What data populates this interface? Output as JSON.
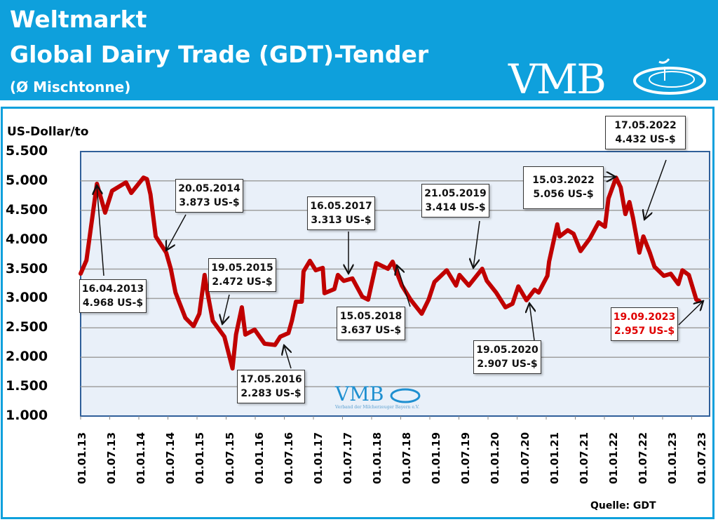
{
  "header": {
    "title_line1": "Weltmarkt",
    "title_line2": "Global Dairy Trade (GDT)-Tender",
    "subtitle": "(Ø Mischtonne)",
    "logo_text": "VMB"
  },
  "watermark": {
    "logo_text": "VMB",
    "tagline": "Verband der Milcherzeuger Bayern e.V."
  },
  "source": "Quelle: GDT",
  "colors": {
    "header": "#0ea0dc",
    "line": "#c00000",
    "plot_bg": "#e9f0f9",
    "highlight": "#e00000"
  },
  "chart_data": {
    "type": "line",
    "ylabel": "US-Dollar/to",
    "ylim": [
      1000,
      5500
    ],
    "yticks": [
      "1.000",
      "1.500",
      "2.000",
      "2.500",
      "3.000",
      "3.500",
      "4.000",
      "4.500",
      "5.000",
      "5.500"
    ],
    "xticks": [
      "01.01.13",
      "01.07.13",
      "01.01.14",
      "01.07.14",
      "01.01.15",
      "01.07.15",
      "01.01.16",
      "01.07.16",
      "01.01.17",
      "01.07.17",
      "01.01.18",
      "01.07.18",
      "01.01.19",
      "01.07.19",
      "01.01.20",
      "01.07.20",
      "01.01.21",
      "01.07.21",
      "01.01.22",
      "01.07.22",
      "01.01.23",
      "01.07.23"
    ],
    "grid": true,
    "x": [
      2013.0,
      2013.1,
      2013.28,
      2013.42,
      2013.54,
      2013.78,
      2013.87,
      2014.08,
      2014.14,
      2014.2,
      2014.29,
      2014.47,
      2014.55,
      2014.63,
      2014.8,
      2014.94,
      2015.04,
      2015.13,
      2015.17,
      2015.27,
      2015.47,
      2015.61,
      2015.67,
      2015.77,
      2015.83,
      2015.99,
      2016.16,
      2016.34,
      2016.43,
      2016.57,
      2016.63,
      2016.7,
      2016.8,
      2016.83,
      2016.94,
      2017.04,
      2017.16,
      2017.19,
      2017.36,
      2017.42,
      2017.52,
      2017.67,
      2017.84,
      2017.94,
      2018.08,
      2018.28,
      2018.36,
      2018.52,
      2018.67,
      2018.86,
      2018.98,
      2019.08,
      2019.29,
      2019.45,
      2019.51,
      2019.67,
      2019.9,
      2019.98,
      2020.14,
      2020.3,
      2020.42,
      2020.52,
      2020.66,
      2020.8,
      2020.87,
      2021.02,
      2021.05,
      2021.19,
      2021.23,
      2021.37,
      2021.47,
      2021.59,
      2021.75,
      2021.9,
      2022.01,
      2022.07,
      2022.2,
      2022.28,
      2022.36,
      2022.43,
      2022.49,
      2022.6,
      2022.67,
      2022.78,
      2022.86,
      2023.02,
      2023.14,
      2023.27,
      2023.34,
      2023.45,
      2023.58,
      2023.63
    ],
    "values": [
      3422,
      3650,
      4950,
      4460,
      4830,
      4975,
      4795,
      5055,
      5030,
      4770,
      4055,
      3780,
      3505,
      3100,
      2670,
      2530,
      2740,
      3400,
      3150,
      2620,
      2350,
      1810,
      2385,
      2850,
      2385,
      2470,
      2230,
      2210,
      2350,
      2410,
      2620,
      2945,
      2945,
      3460,
      3640,
      3480,
      3520,
      3090,
      3160,
      3400,
      3300,
      3340,
      3030,
      2980,
      3600,
      3505,
      3625,
      3220,
      2980,
      2740,
      2980,
      3280,
      3480,
      3220,
      3400,
      3220,
      3505,
      3300,
      3100,
      2850,
      2910,
      3205,
      2970,
      3150,
      3100,
      3385,
      3625,
      4260,
      4055,
      4160,
      4100,
      3805,
      4020,
      4295,
      4220,
      4700,
      5055,
      4890,
      4435,
      4640,
      4375,
      3780,
      4055,
      3780,
      3540,
      3385,
      3420,
      3245,
      3480,
      3400,
      2980,
      2957
    ],
    "annotations": [
      {
        "date": "16.04.2013",
        "value": "4.968 US-$",
        "x": 2013.29,
        "y": 4968
      },
      {
        "date": "20.05.2014",
        "value": "3.873 US-$",
        "x": 2014.38,
        "y": 3873
      },
      {
        "date": "19.05.2015",
        "value": "2.472 US-$",
        "x": 2015.38,
        "y": 2472
      },
      {
        "date": "17.05.2016",
        "value": "2.283 US-$",
        "x": 2016.38,
        "y": 2283
      },
      {
        "date": "16.05.2017",
        "value": "3.313 US-$",
        "x": 2017.37,
        "y": 3313
      },
      {
        "date": "15.05.2018",
        "value": "3.637 US-$",
        "x": 2018.37,
        "y": 3637
      },
      {
        "date": "21.05.2019",
        "value": "3.414 US-$",
        "x": 2019.38,
        "y": 3414
      },
      {
        "date": "19.05.2020",
        "value": "2.907 US-$",
        "x": 2020.38,
        "y": 2907
      },
      {
        "date": "15.03.2022",
        "value": "5.056 US-$",
        "x": 2022.2,
        "y": 5056
      },
      {
        "date": "17.05.2022",
        "value": "4.432 US-$",
        "x": 2022.37,
        "y": 4432
      },
      {
        "date": "19.09.2023",
        "value": "2.957 US-$",
        "x": 2023.72,
        "y": 2957,
        "highlight": true
      }
    ]
  }
}
